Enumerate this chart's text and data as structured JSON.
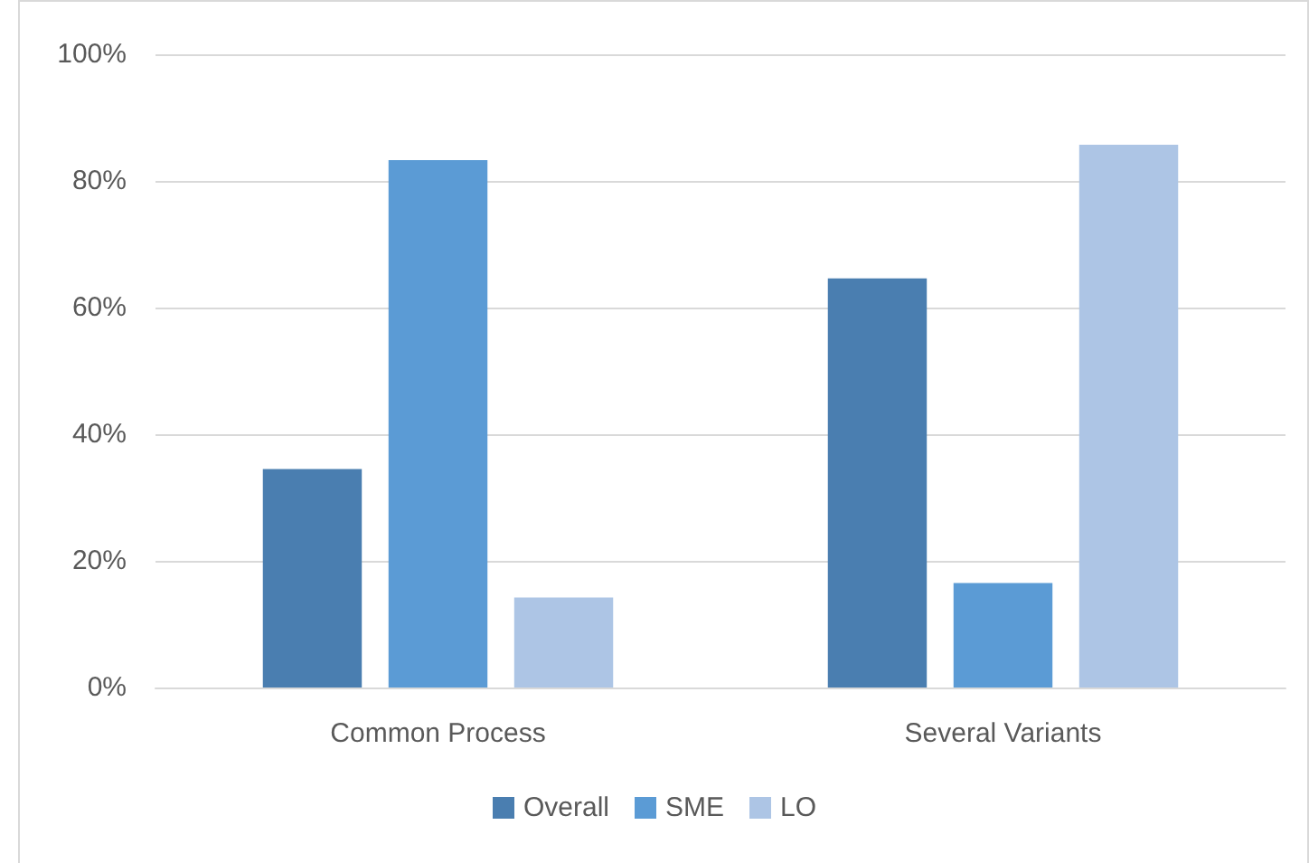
{
  "chart_data": {
    "type": "bar",
    "categories": [
      "Common Process",
      "Several Variants"
    ],
    "series": [
      {
        "name": "Overall",
        "color": "#4a7eb0",
        "values": [
          34.5,
          64.6
        ]
      },
      {
        "name": "SME",
        "color": "#5b9bd5",
        "values": [
          83.3,
          16.5
        ]
      },
      {
        "name": "LO",
        "color": "#adc5e5",
        "values": [
          14.2,
          85.7
        ]
      }
    ],
    "ylim": [
      0,
      100
    ],
    "yticks": [
      {
        "value": 0,
        "label": "0%"
      },
      {
        "value": 20,
        "label": "20%"
      },
      {
        "value": 40,
        "label": "40%"
      },
      {
        "value": 60,
        "label": "60%"
      },
      {
        "value": 80,
        "label": "80%"
      },
      {
        "value": 100,
        "label": "100%"
      }
    ],
    "grid": "y",
    "legend": "bottom"
  }
}
